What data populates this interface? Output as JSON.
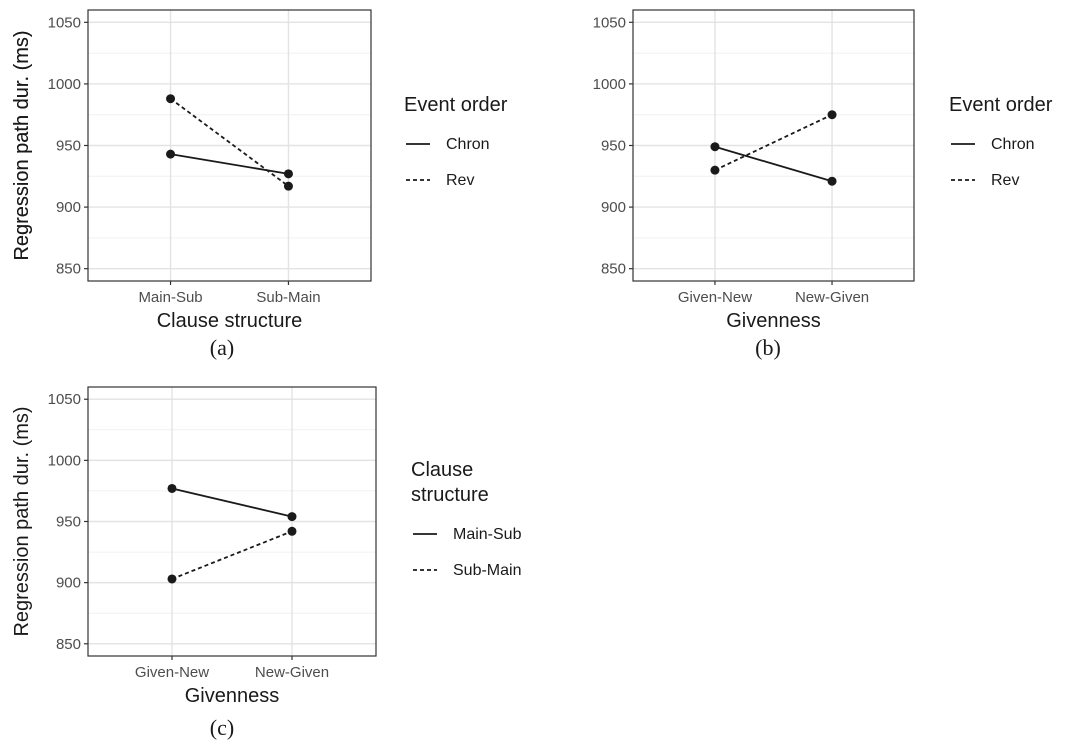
{
  "chart_data": [
    {
      "type": "line",
      "caption": "(a)",
      "xlabel": "Clause structure",
      "ylabel": "Regression path dur. (ms)",
      "categories": [
        "Main-Sub",
        "Sub-Main"
      ],
      "ylim": [
        840,
        1060
      ],
      "yticks": [
        850,
        900,
        950,
        1000,
        1050
      ],
      "grid": true,
      "legend_title": [
        "Event order"
      ],
      "series": [
        {
          "name": "Chron",
          "linestyle": "solid",
          "values": [
            943,
            927
          ]
        },
        {
          "name": "Rev",
          "linestyle": "dashed",
          "values": [
            988,
            917
          ]
        }
      ]
    },
    {
      "type": "line",
      "caption": "(b)",
      "xlabel": "Givenness",
      "ylabel": "Regression path dur. (ms)",
      "categories": [
        "Given-New",
        "New-Given"
      ],
      "ylim": [
        840,
        1060
      ],
      "yticks": [
        850,
        900,
        950,
        1000,
        1050
      ],
      "grid": true,
      "legend_title": [
        "Event order"
      ],
      "series": [
        {
          "name": "Chron",
          "linestyle": "solid",
          "values": [
            949,
            921
          ]
        },
        {
          "name": "Rev",
          "linestyle": "dashed",
          "values": [
            930,
            975
          ]
        }
      ]
    },
    {
      "type": "line",
      "caption": "(c)",
      "xlabel": "Givenness",
      "ylabel": "Regression path dur. (ms)",
      "categories": [
        "Given-New",
        "New-Given"
      ],
      "ylim": [
        840,
        1060
      ],
      "yticks": [
        850,
        900,
        950,
        1000,
        1050
      ],
      "grid": true,
      "legend_title": [
        "Clause",
        "structure"
      ],
      "series": [
        {
          "name": "Main-Sub",
          "linestyle": "solid",
          "values": [
            977,
            954
          ]
        },
        {
          "name": "Sub-Main",
          "linestyle": "dashed",
          "values": [
            903,
            942
          ]
        }
      ]
    }
  ]
}
